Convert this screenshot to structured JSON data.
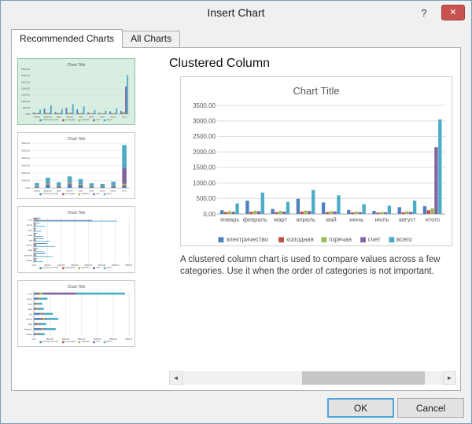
{
  "window": {
    "title": "Insert Chart",
    "help_icon": "?",
    "close_icon": "✕"
  },
  "tabs": [
    {
      "label": "Recommended Charts",
      "active": true
    },
    {
      "label": "All Charts",
      "active": false
    }
  ],
  "preview": {
    "heading": "Clustered Column",
    "description": "A clustered column chart is used to compare values across a few categories. Use it when the order of categories is not important."
  },
  "thumbnails": [
    {
      "type": "clustered-column",
      "selected": true
    },
    {
      "type": "stacked-column",
      "selected": false
    },
    {
      "type": "clustered-bar",
      "selected": false
    },
    {
      "type": "stacked-bar",
      "selected": false
    }
  ],
  "scrollbar": {
    "left_icon": "◄",
    "right_icon": "►"
  },
  "footer": {
    "ok_label": "OK",
    "cancel_label": "Cancel"
  },
  "chart_data": {
    "type": "bar",
    "title": "Chart Title",
    "categories": [
      "январь",
      "февраль",
      "март",
      "апрель",
      "май",
      "июнь",
      "июль",
      "август",
      "итого"
    ],
    "series": [
      {
        "name": "электричество",
        "color": "#4f81bd",
        "values": [
          120,
          430,
          160,
          490,
          370,
          130,
          100,
          220,
          250
        ]
      },
      {
        "name": "холодная",
        "color": "#c0504d",
        "values": [
          60,
          70,
          60,
          80,
          60,
          50,
          45,
          55,
          120
        ]
      },
      {
        "name": "горячая",
        "color": "#9bbb59",
        "values": [
          90,
          100,
          95,
          110,
          90,
          75,
          65,
          85,
          180
        ]
      },
      {
        "name": "счет",
        "color": "#8064a2",
        "values": [
          70,
          90,
          75,
          95,
          80,
          60,
          55,
          70,
          2150
        ]
      },
      {
        "name": "всего",
        "color": "#4bacc6",
        "values": [
          340,
          690,
          390,
          775,
          600,
          315,
          265,
          430,
          3050
        ]
      }
    ],
    "ylim": [
      0,
      3500
    ],
    "ytick_step": 500,
    "y_ticks": [
      "0,00",
      "500,00",
      "1000,00",
      "1500,00",
      "2000,00",
      "2500,00",
      "3000,00",
      "3500,00"
    ],
    "grid": true,
    "legend_position": "bottom"
  }
}
